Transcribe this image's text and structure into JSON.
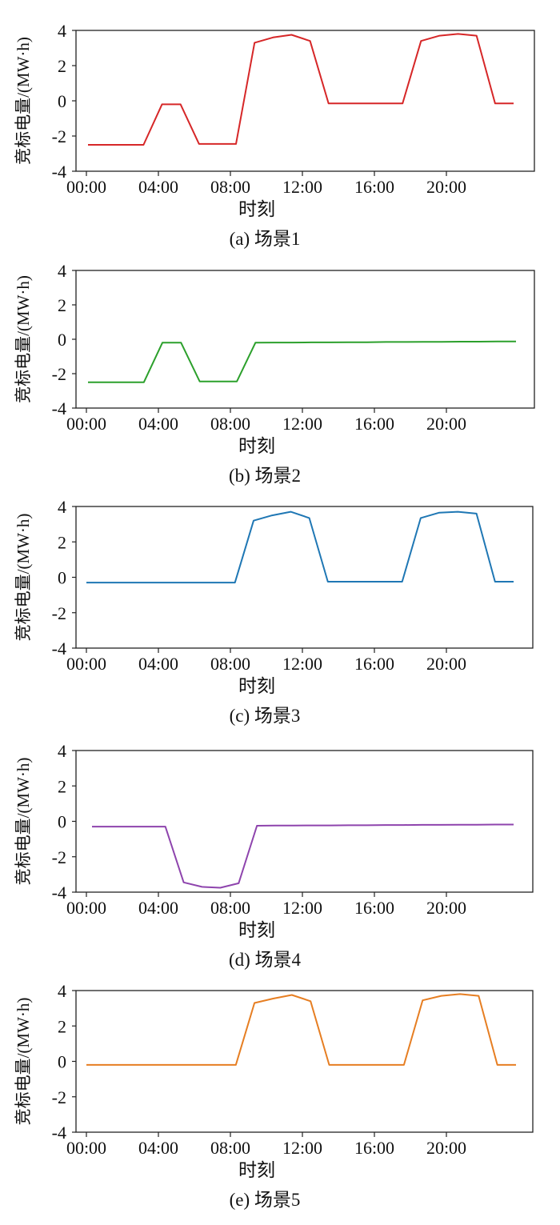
{
  "figure": {
    "colors": [
      "#d62728",
      "#2ca02c",
      "#1f77b4",
      "#8e44ad",
      "#e67e22"
    ]
  },
  "chart_data": [
    {
      "type": "line",
      "caption": "(a) 场景1",
      "xlabel": "时刻",
      "ylabel": "竞标电量/(MW·h)",
      "xticks": [
        "00:00",
        "04:00",
        "08:00",
        "12:00",
        "16:00",
        "20:00"
      ],
      "yticks": [
        "4",
        "2",
        "0",
        "-2",
        "-4"
      ],
      "ylim": [
        -4,
        4
      ],
      "color": "#d62728",
      "x": [
        0,
        1,
        2,
        3,
        4,
        5,
        6,
        7,
        8,
        9,
        10,
        11,
        12,
        13,
        14,
        15,
        16,
        17,
        18,
        19,
        20,
        21,
        22,
        23
      ],
      "values": [
        -2.5,
        -2.5,
        -2.5,
        -2.5,
        -0.2,
        -0.2,
        -2.45,
        -2.45,
        -2.45,
        3.3,
        3.6,
        3.75,
        3.4,
        -0.15,
        -0.15,
        -0.15,
        -0.15,
        -0.15,
        3.4,
        3.7,
        3.8,
        3.7,
        -0.15,
        -0.15
      ]
    },
    {
      "type": "line",
      "caption": "(b) 场景2",
      "xlabel": "时刻",
      "ylabel": "竞标电量/(MW·h)",
      "xticks": [
        "00:00",
        "04:00",
        "08:00",
        "12:00",
        "16:00",
        "20:00"
      ],
      "yticks": [
        "4",
        "2",
        "0",
        "-2",
        "-4"
      ],
      "ylim": [
        -4,
        4
      ],
      "color": "#2ca02c",
      "x": [
        0,
        1,
        2,
        3,
        4,
        5,
        6,
        7,
        8,
        9,
        10,
        11,
        12,
        13,
        14,
        15,
        16,
        17,
        18,
        19,
        20,
        21,
        22,
        23
      ],
      "values": [
        -2.5,
        -2.5,
        -2.5,
        -2.5,
        -0.2,
        -0.2,
        -2.45,
        -2.45,
        -2.45,
        -0.2,
        -0.19,
        -0.19,
        -0.18,
        -0.18,
        -0.17,
        -0.17,
        -0.16,
        -0.16,
        -0.15,
        -0.15,
        -0.14,
        -0.14,
        -0.13,
        -0.13
      ]
    },
    {
      "type": "line",
      "caption": "(c) 场景3",
      "xlabel": "时刻",
      "ylabel": "竞标电量/(MW·h)",
      "xticks": [
        "00:00",
        "04:00",
        "08:00",
        "12:00",
        "16:00",
        "20:00"
      ],
      "yticks": [
        "4",
        "2",
        "0",
        "-2",
        "-4"
      ],
      "ylim": [
        -4,
        4
      ],
      "color": "#1f77b4",
      "x": [
        0,
        1,
        2,
        3,
        4,
        5,
        6,
        7,
        8,
        9,
        10,
        11,
        12,
        13,
        14,
        15,
        16,
        17,
        18,
        19,
        20,
        21,
        22,
        23
      ],
      "values": [
        -0.3,
        -0.3,
        -0.3,
        -0.3,
        -0.3,
        -0.3,
        -0.3,
        -0.3,
        -0.3,
        3.2,
        3.5,
        3.7,
        3.35,
        -0.25,
        -0.25,
        -0.25,
        -0.25,
        -0.25,
        3.35,
        3.65,
        3.7,
        3.6,
        -0.25,
        -0.25
      ]
    },
    {
      "type": "line",
      "caption": "(d) 场景4",
      "xlabel": "时刻",
      "ylabel": "竞标电量/(MW·h)",
      "xticks": [
        "00:00",
        "04:00",
        "08:00",
        "12:00",
        "16:00",
        "20:00"
      ],
      "yticks": [
        "4",
        "2",
        "0",
        "-2",
        "-4"
      ],
      "ylim": [
        -4,
        4
      ],
      "color": "#8e44ad",
      "x": [
        0,
        1,
        2,
        3,
        4,
        5,
        6,
        7,
        8,
        9,
        10,
        11,
        12,
        13,
        14,
        15,
        16,
        17,
        18,
        19,
        20,
        21,
        22,
        23
      ],
      "values": [
        -0.3,
        -0.3,
        -0.3,
        -0.3,
        -0.3,
        -3.45,
        -3.7,
        -3.75,
        -3.5,
        -0.25,
        -0.24,
        -0.24,
        -0.23,
        -0.23,
        -0.22,
        -0.22,
        -0.21,
        -0.21,
        -0.2,
        -0.2,
        -0.19,
        -0.19,
        -0.18,
        -0.18
      ]
    },
    {
      "type": "line",
      "caption": "(e) 场景5",
      "xlabel": "时刻",
      "ylabel": "竞标电量/(MW·h)",
      "xticks": [
        "00:00",
        "04:00",
        "08:00",
        "12:00",
        "16:00",
        "20:00"
      ],
      "yticks": [
        "4",
        "2",
        "0",
        "-2",
        "-4"
      ],
      "ylim": [
        -4,
        4
      ],
      "color": "#e67e22",
      "x": [
        0,
        1,
        2,
        3,
        4,
        5,
        6,
        7,
        8,
        9,
        10,
        11,
        12,
        13,
        14,
        15,
        16,
        17,
        18,
        19,
        20,
        21,
        22,
        23
      ],
      "values": [
        -0.2,
        -0.2,
        -0.2,
        -0.2,
        -0.2,
        -0.2,
        -0.2,
        -0.2,
        -0.2,
        3.3,
        3.55,
        3.75,
        3.4,
        -0.2,
        -0.2,
        -0.2,
        -0.2,
        -0.2,
        3.45,
        3.7,
        3.8,
        3.7,
        -0.2,
        -0.2
      ]
    }
  ]
}
